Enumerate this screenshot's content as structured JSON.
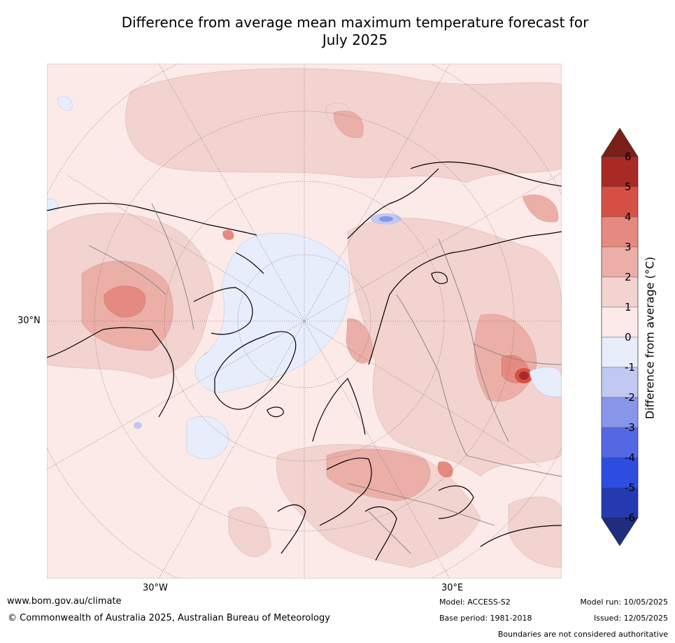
{
  "title_line1": "Difference from average mean maximum temperature forecast for",
  "title_line2": "July 2025",
  "map": {
    "lat_labels": [
      "30°N"
    ],
    "lon_labels": [
      "30°W",
      "30°E"
    ],
    "projection": "north-polar stereographic",
    "colors": {
      "anom_0_1": "#fbeae7",
      "anom_1_2": "#f3d3cf",
      "anom_2_3": "#ebafa8",
      "anom_3_4": "#e58a81",
      "anom_4_5": "#d65145",
      "anom_5_6": "#a92a24",
      "anom_m1_0": "#e8edfb",
      "anom_m2_m1": "#c1c9f2",
      "anom_m3_m2": "#8896ea",
      "coast": "#000000",
      "borders": "#808080"
    }
  },
  "colorbar": {
    "label": "Difference from average (°C)",
    "ticks": [
      "6",
      "5",
      "4",
      "3",
      "2",
      "1",
      "0",
      "-1",
      "-2",
      "-3",
      "-4",
      "-5",
      "-6"
    ],
    "colors_top_to_bottom": [
      "#a92a24",
      "#d65145",
      "#e58a81",
      "#ebafa8",
      "#f3d3cf",
      "#fbeae7",
      "#e8edfb",
      "#c1c9f2",
      "#8896ea",
      "#5568e3",
      "#2c4de0",
      "#2539b0"
    ],
    "extend_max_color": "#7a1f1a",
    "extend_min_color": "#1f2c80"
  },
  "footer": {
    "website": "www.bom.gov.au/climate",
    "copyright": "© Commonwealth of Australia 2025, Australian Bureau of Meteorology",
    "model": "Model: ACCESS-S2",
    "base_period": "Base period: 1981-2018",
    "model_run": "Model run: 10/05/2025",
    "issued": "Issued: 12/05/2025",
    "disclaimer": "Boundaries are not considered authoritative"
  }
}
